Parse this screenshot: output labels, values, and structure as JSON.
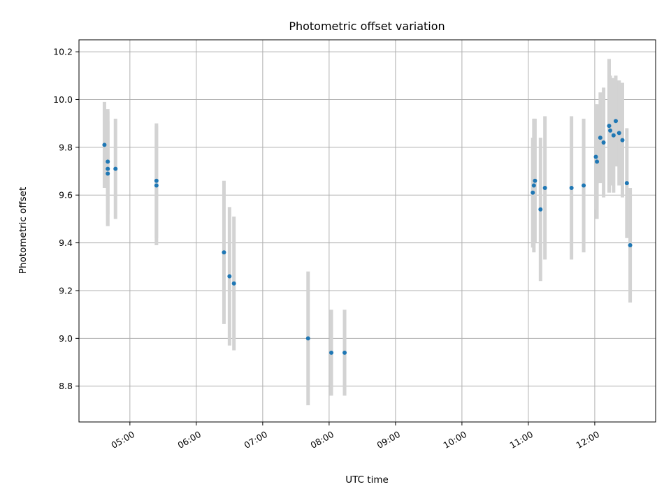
{
  "chart_data": {
    "type": "scatter",
    "title": "Photometric offset variation",
    "xlabel": "UTC time",
    "ylabel": "Photometric offset",
    "xlim": [
      "04:14",
      "12:55"
    ],
    "ylim": [
      8.65,
      10.25
    ],
    "x_tick_labels": [
      "05:00",
      "06:00",
      "07:00",
      "08:00",
      "09:00",
      "10:00",
      "11:00",
      "12:00"
    ],
    "y_tick_labels": [
      "8.8",
      "9.0",
      "9.2",
      "9.4",
      "9.6",
      "9.8",
      "10.0",
      "10.2"
    ],
    "grid": true,
    "point_color": "#1f77b4",
    "errorbar_color": "#d3d3d3",
    "points": [
      {
        "x": "04:37",
        "y": 9.81,
        "err": 0.18
      },
      {
        "x": "04:40",
        "y": 9.74,
        "err": 0.22
      },
      {
        "x": "04:40",
        "y": 9.71,
        "err": 0.24
      },
      {
        "x": "04:40",
        "y": 9.69,
        "err": 0.22
      },
      {
        "x": "04:47",
        "y": 9.71,
        "err": 0.21
      },
      {
        "x": "05:24",
        "y": 9.66,
        "err": 0.24
      },
      {
        "x": "05:24",
        "y": 9.64,
        "err": 0.25
      },
      {
        "x": "06:25",
        "y": 9.36,
        "err": 0.3
      },
      {
        "x": "06:30",
        "y": 9.26,
        "err": 0.29
      },
      {
        "x": "06:34",
        "y": 9.23,
        "err": 0.28
      },
      {
        "x": "07:41",
        "y": 9.0,
        "err": 0.28
      },
      {
        "x": "08:02",
        "y": 8.94,
        "err": 0.18
      },
      {
        "x": "08:14",
        "y": 8.94,
        "err": 0.18
      },
      {
        "x": "11:04",
        "y": 9.61,
        "err": 0.23
      },
      {
        "x": "11:05",
        "y": 9.64,
        "err": 0.28
      },
      {
        "x": "11:06",
        "y": 9.66,
        "err": 0.26
      },
      {
        "x": "11:11",
        "y": 9.54,
        "err": 0.3
      },
      {
        "x": "11:15",
        "y": 9.63,
        "err": 0.3
      },
      {
        "x": "11:39",
        "y": 9.63,
        "err": 0.3
      },
      {
        "x": "11:50",
        "y": 9.64,
        "err": 0.28
      },
      {
        "x": "12:01",
        "y": 9.76,
        "err": 0.22
      },
      {
        "x": "12:02",
        "y": 9.74,
        "err": 0.24
      },
      {
        "x": "12:05",
        "y": 9.84,
        "err": 0.19
      },
      {
        "x": "12:08",
        "y": 9.82,
        "err": 0.23
      },
      {
        "x": "12:13",
        "y": 9.89,
        "err": 0.28
      },
      {
        "x": "12:14",
        "y": 9.87,
        "err": 0.23
      },
      {
        "x": "12:17",
        "y": 9.85,
        "err": 0.24
      },
      {
        "x": "12:19",
        "y": 9.91,
        "err": 0.19
      },
      {
        "x": "12:22",
        "y": 9.86,
        "err": 0.22
      },
      {
        "x": "12:25",
        "y": 9.83,
        "err": 0.24
      },
      {
        "x": "12:29",
        "y": 9.65,
        "err": 0.23
      },
      {
        "x": "12:32",
        "y": 9.39,
        "err": 0.24
      }
    ]
  }
}
